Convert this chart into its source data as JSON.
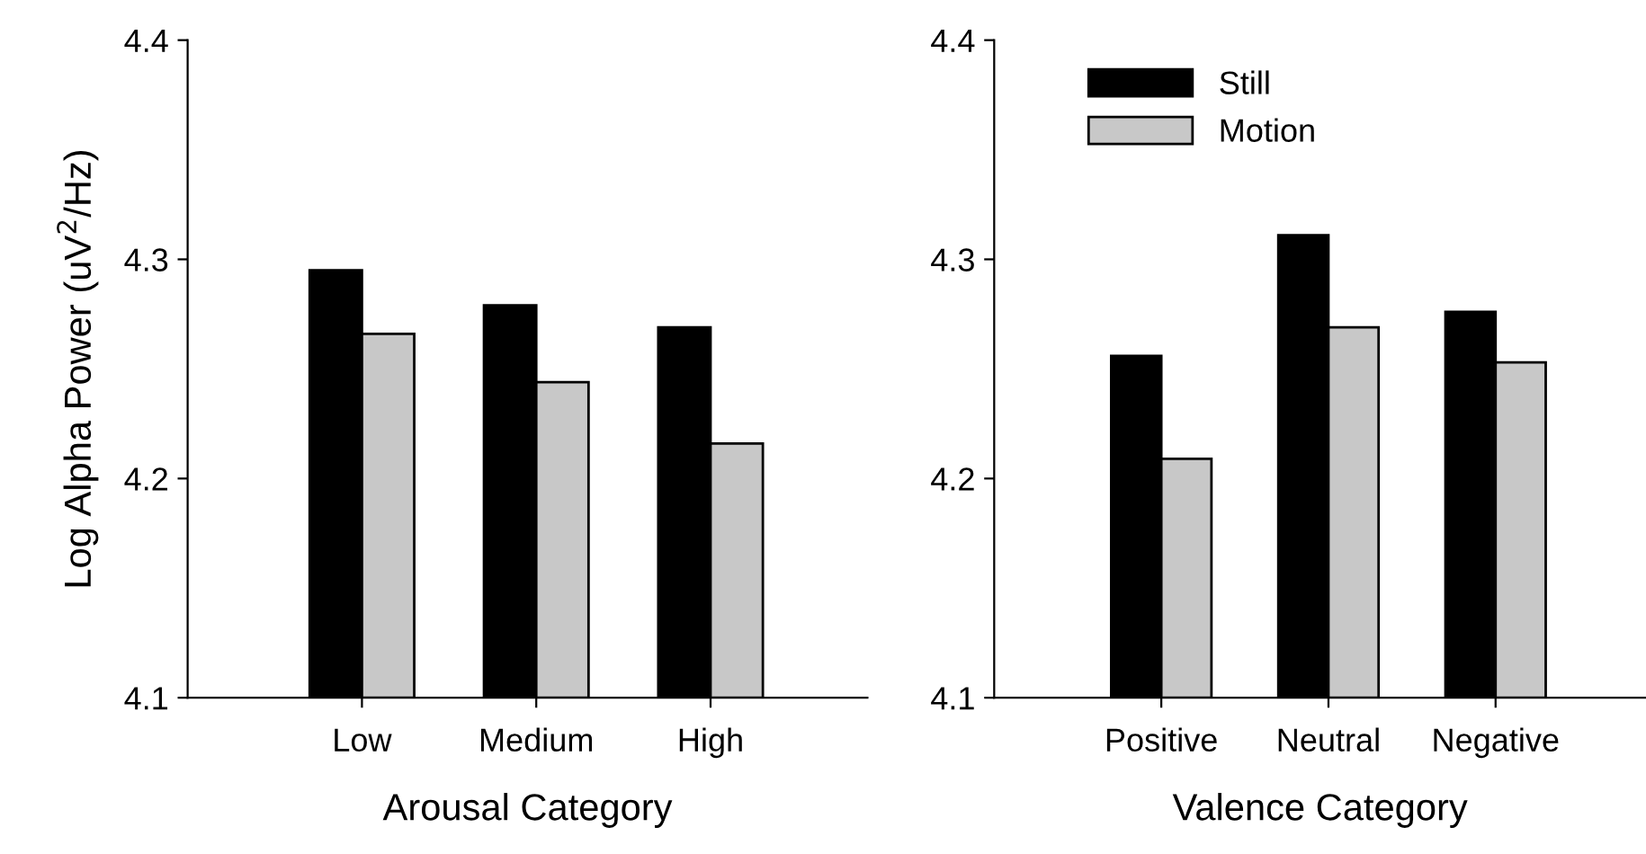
{
  "chart_data": [
    {
      "type": "bar",
      "xlabel": "Arousal Category",
      "ylabel": "Log Alpha Power (uV$^{2}$/Hz)",
      "categories": [
        "Low",
        "Medium",
        "High"
      ],
      "ylim": [
        4.1,
        4.4
      ],
      "yticks": [
        4.1,
        4.2,
        4.3,
        4.4
      ],
      "grid": false,
      "legend": false,
      "series": [
        {
          "color": "#000000",
          "values": [
            4.295,
            4.279,
            4.269
          ]
        },
        {
          "color": "#c8c8c8",
          "values": [
            4.266,
            4.244,
            4.216
          ]
        }
      ]
    },
    {
      "type": "bar",
      "xlabel": "Valence Category",
      "categories": [
        "Positive",
        "Neutral",
        "Negative"
      ],
      "ylim": [
        4.1,
        4.4
      ],
      "yticks": [
        4.1,
        4.2,
        4.3,
        4.4
      ],
      "grid": false,
      "legend": "top left",
      "series": [
        {
          "name": "Still",
          "color": "#000000",
          "values": [
            4.256,
            4.311,
            4.276
          ]
        },
        {
          "name": "Motion",
          "color": "#c8c8c8",
          "values": [
            4.209,
            4.269,
            4.253
          ]
        }
      ]
    }
  ]
}
